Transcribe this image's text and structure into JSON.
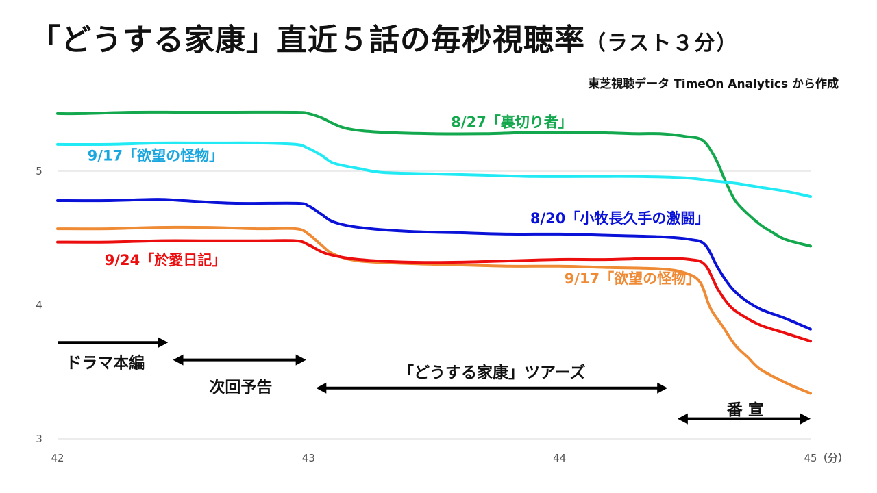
{
  "title": {
    "main": "「どうする家康」直近５話の毎秒視聴率",
    "sub": "（ラスト３分）"
  },
  "source": "東芝視聴データ TimeOn Analytics から作成",
  "chart_data": {
    "type": "line",
    "title": "「どうする家康」直近５話の毎秒視聴率（ラスト３分）",
    "xlabel": "",
    "xunit": "（分）",
    "ylabel": "",
    "xlim": [
      42,
      45
    ],
    "ylim": [
      3,
      5.5
    ],
    "xticks": [
      "42",
      "43",
      "44",
      "45"
    ],
    "yticks": [
      "3",
      "4",
      "5"
    ],
    "grid": true,
    "series": [
      {
        "name": "8/27「裏切り者」",
        "color": "#13a84d",
        "x": [
          42,
          42.1,
          42.3,
          42.5,
          42.7,
          42.95,
          43.0,
          43.05,
          43.15,
          43.3,
          43.5,
          43.7,
          43.9,
          44.1,
          44.3,
          44.4,
          44.5,
          44.57,
          44.62,
          44.66,
          44.7,
          44.75,
          44.8,
          44.85,
          44.9,
          45.0
        ],
        "y": [
          5.43,
          5.43,
          5.44,
          5.44,
          5.44,
          5.44,
          5.43,
          5.4,
          5.32,
          5.29,
          5.28,
          5.28,
          5.29,
          5.29,
          5.28,
          5.28,
          5.26,
          5.23,
          5.1,
          4.93,
          4.78,
          4.68,
          4.6,
          4.54,
          4.49,
          4.44
        ]
      },
      {
        "name": "9/17「欲望の怪物」",
        "color": "#22eaf4",
        "x": [
          42,
          42.2,
          42.4,
          42.6,
          42.8,
          42.95,
          43.0,
          43.05,
          43.1,
          43.2,
          43.3,
          43.5,
          43.7,
          43.9,
          44.1,
          44.3,
          44.5,
          44.6,
          44.7,
          44.8,
          44.9,
          45.0
        ],
        "y": [
          5.2,
          5.2,
          5.21,
          5.21,
          5.21,
          5.2,
          5.17,
          5.12,
          5.06,
          5.02,
          4.99,
          4.98,
          4.97,
          4.96,
          4.96,
          4.96,
          4.95,
          4.93,
          4.91,
          4.88,
          4.85,
          4.81
        ]
      },
      {
        "name": "8/20「小牧長久手の激闘」",
        "color": "#0a12d8",
        "x": [
          42,
          42.2,
          42.4,
          42.5,
          42.7,
          42.95,
          43.0,
          43.05,
          43.1,
          43.2,
          43.4,
          43.6,
          43.8,
          44.0,
          44.2,
          44.4,
          44.52,
          44.58,
          44.63,
          44.68,
          44.73,
          44.8,
          44.9,
          45.0
        ],
        "y": [
          4.78,
          4.78,
          4.79,
          4.78,
          4.76,
          4.76,
          4.74,
          4.68,
          4.62,
          4.58,
          4.55,
          4.54,
          4.53,
          4.53,
          4.52,
          4.51,
          4.49,
          4.45,
          4.28,
          4.14,
          4.05,
          3.97,
          3.9,
          3.82
        ]
      },
      {
        "name": "9/17「欲望の怪物」",
        "color": "#ef8a35",
        "x": [
          42,
          42.2,
          42.4,
          42.6,
          42.8,
          42.95,
          43.0,
          43.05,
          43.1,
          43.2,
          43.4,
          43.6,
          43.8,
          44.0,
          44.2,
          44.4,
          44.5,
          44.56,
          44.6,
          44.65,
          44.7,
          44.75,
          44.8,
          44.9,
          45.0
        ],
        "y": [
          4.57,
          4.57,
          4.58,
          4.58,
          4.57,
          4.57,
          4.53,
          4.45,
          4.38,
          4.33,
          4.31,
          4.3,
          4.29,
          4.29,
          4.28,
          4.27,
          4.24,
          4.17,
          3.98,
          3.84,
          3.7,
          3.61,
          3.52,
          3.42,
          3.34
        ]
      },
      {
        "name": "9/24「於愛日記」",
        "color": "#ec0e0e",
        "x": [
          42,
          42.2,
          42.4,
          42.6,
          42.8,
          42.95,
          43.0,
          43.05,
          43.1,
          43.2,
          43.4,
          43.6,
          43.8,
          44.0,
          44.2,
          44.4,
          44.52,
          44.58,
          44.63,
          44.68,
          44.73,
          44.8,
          44.9,
          45.0
        ],
        "y": [
          4.47,
          4.47,
          4.48,
          4.48,
          4.48,
          4.48,
          4.45,
          4.4,
          4.37,
          4.34,
          4.32,
          4.32,
          4.33,
          4.34,
          4.34,
          4.35,
          4.34,
          4.3,
          4.12,
          3.99,
          3.92,
          3.85,
          3.79,
          3.73
        ]
      }
    ],
    "series_labels": [
      {
        "text": "8/27「裏切り者」",
        "color": "#13a84d",
        "x": 43.81,
        "y": 5.33
      },
      {
        "text": "9/17「欲望の怪物」",
        "color": "#1aa7e0",
        "x": 42.39,
        "y": 5.08
      },
      {
        "text": "8/20「小牧長久手の激闘」",
        "color": "#0a12d8",
        "x": 44.24,
        "y": 4.61
      },
      {
        "text": "9/24「於愛日記」",
        "color": "#ec0e0e",
        "x": 42.43,
        "y": 4.3
      },
      {
        "text": "9/17「欲望の怪物」",
        "color": "#ef8a35",
        "x": 44.29,
        "y": 4.16
      }
    ],
    "segments": [
      {
        "label": "ドラマ本編",
        "start": 42,
        "end": 42.44,
        "label_x": 42.19,
        "label_y": 3.57,
        "arrow_y": 3.72,
        "heads": "end"
      },
      {
        "label": "次回予告",
        "start": 42.46,
        "end": 42.99,
        "label_x": 42.73,
        "label_y": 3.39,
        "arrow_y": 3.59,
        "heads": "both"
      },
      {
        "label": "「どうする家康」ツアーズ",
        "start": 43.03,
        "end": 44.43,
        "label_x": 43.73,
        "label_y": 3.5,
        "arrow_y": 3.38,
        "heads": "both"
      },
      {
        "label": "番 宣",
        "start": 44.47,
        "end": 45.0,
        "label_x": 44.74,
        "label_y": 3.22,
        "arrow_y": 3.15,
        "heads": "both"
      }
    ]
  }
}
